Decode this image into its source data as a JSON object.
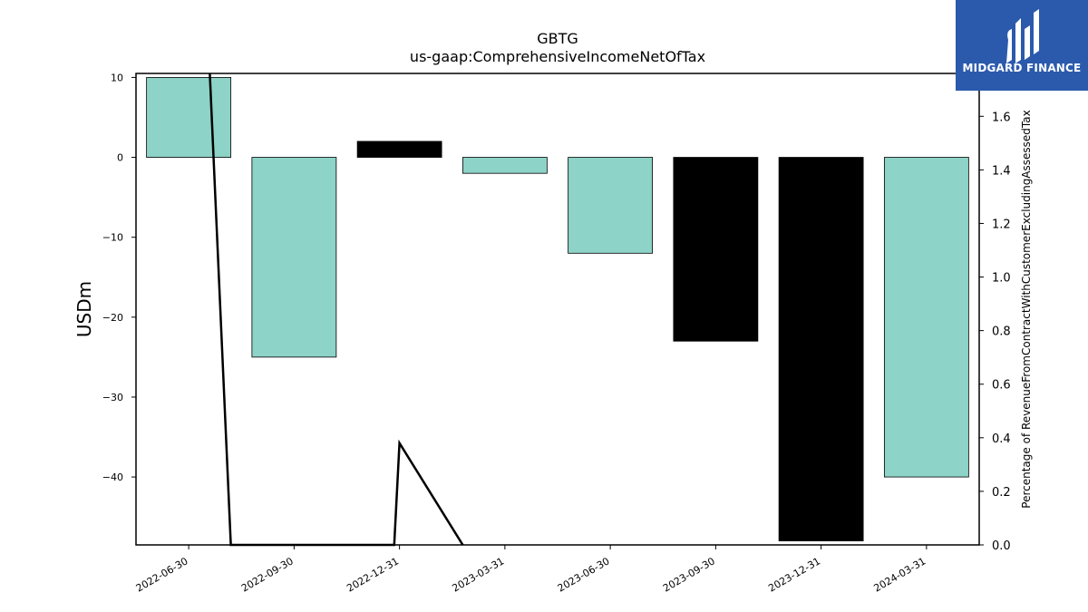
{
  "logo": {
    "text": "MIDGARD FINANCE"
  },
  "colors": {
    "bar_default": "#8dd3c7",
    "bar_highlight": "#000000",
    "line": "#000000",
    "logo_bg": "#2b5aad"
  },
  "chart_data": {
    "type": "bar",
    "title": "GBTG",
    "subtitle": "us-gaap:ComprehensiveIncomeNetOfTax",
    "ylabel": "USDm",
    "y2label": "Percentage of RevenueFromContractWithCustomerExcludingAssessedTax",
    "categories": [
      "2022-06-30",
      "2022-09-30",
      "2022-12-31",
      "2023-03-31",
      "2023-06-30",
      "2023-09-30",
      "2023-12-31",
      "2024-03-31"
    ],
    "values": [
      10,
      -25,
      2,
      -2,
      -12,
      -23,
      -48,
      -40
    ],
    "highlight": [
      false,
      false,
      true,
      false,
      false,
      true,
      true,
      false
    ],
    "ylim": [
      -48.5,
      10.5
    ],
    "yticks": [
      10,
      0,
      -10,
      -20,
      -30,
      -40
    ],
    "y2lim": [
      0,
      1.76
    ],
    "y2ticks": [
      0.0,
      0.2,
      0.4,
      0.6,
      0.8,
      1.0,
      1.2,
      1.4,
      1.6
    ],
    "line": {
      "x": [
        0.2,
        0.4,
        1.95,
        2.0,
        2.6
      ],
      "y": [
        1.76,
        0.0,
        0.0,
        0.38,
        0.0
      ]
    }
  }
}
